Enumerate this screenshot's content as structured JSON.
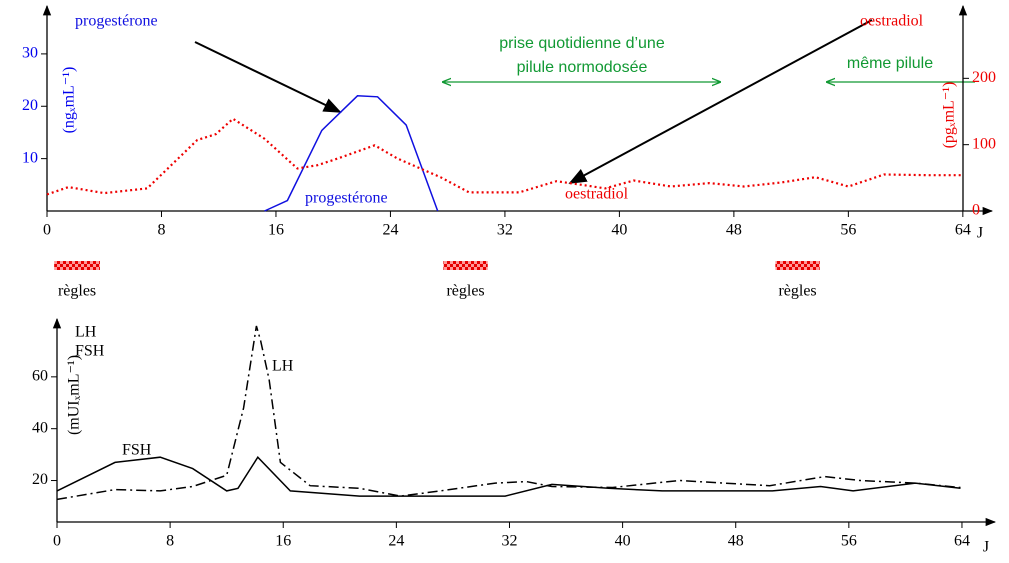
{
  "chart_data": [
    {
      "type": "line",
      "xlim": [
        0,
        66
      ],
      "xticks": [
        0,
        8,
        16,
        24,
        32,
        40,
        48,
        56,
        64
      ],
      "xlabel": "J",
      "ylim": [
        0,
        38
      ],
      "yticks": [
        10,
        20,
        30
      ],
      "ylabel": "(ngₓmL⁻¹)",
      "ycolor": "#0000ee",
      "y2lim": [
        0,
        300
      ],
      "y2ticks": [
        0,
        100,
        200
      ],
      "y2label": "(pgₓmL⁻¹)",
      "y2color": "#ee0000",
      "series": [
        {
          "name": "progestérone",
          "color": "#1010e0",
          "style": "solid",
          "axis": "y",
          "x": [
            15.2,
            16.8,
            19.2,
            21.7,
            23.1,
            25.1,
            27.3
          ],
          "values": [
            0,
            2,
            15.4,
            22,
            21.8,
            16.4,
            0
          ]
        },
        {
          "name": "oestradiol",
          "color": "#ee0000",
          "style": "dotted",
          "axis": "y2",
          "x": [
            0,
            1.5,
            4,
            7,
            10.5,
            11.8,
            13,
            15.2,
            17.5,
            18.9,
            20.3,
            22.9,
            24.5,
            27.5,
            29.5,
            33,
            35.6,
            37.5,
            39,
            41,
            43.6,
            46.3,
            48.7,
            51.3,
            53.7,
            56,
            58.5,
            61.7,
            64
          ],
          "values": [
            25,
            36,
            27,
            34,
            107,
            116,
            139,
            109,
            64,
            69,
            79,
            99,
            79,
            51,
            28,
            28,
            45,
            39,
            34,
            46,
            37,
            42,
            37,
            43,
            51,
            37,
            55,
            54,
            54
          ]
        }
      ],
      "annotations": [
        {
          "text": "progestérone",
          "color": "#1010e0"
        },
        {
          "text": "progestérone",
          "color": "#1010e0"
        },
        {
          "text": "oestradiol",
          "color": "#ee0000"
        },
        {
          "text": "oestradiol",
          "color": "#ee0000"
        },
        {
          "text": "prise quotidienne d’une",
          "color": "#119933"
        },
        {
          "text": "pilule normodosée",
          "color": "#119933"
        },
        {
          "text": "même pilule",
          "color": "#119933"
        }
      ],
      "periods": [
        {
          "label": "règles",
          "start": 0.5,
          "end": 3.7
        },
        {
          "label": "règles",
          "start": 27.7,
          "end": 30.8
        },
        {
          "label": "règles",
          "start": 50.9,
          "end": 54
        }
      ]
    },
    {
      "type": "line",
      "xlim": [
        0,
        66
      ],
      "xticks": [
        0,
        8,
        16,
        24,
        32,
        40,
        48,
        56,
        64
      ],
      "xlabel": "J",
      "ylim": [
        4,
        80
      ],
      "yticks": [
        20,
        40,
        60
      ],
      "ylabel": "(mUIₓmL⁻¹)",
      "ycolor": "#000000",
      "legend_labels": [
        "LH",
        "FSH"
      ],
      "series": [
        {
          "name": "FSH",
          "color": "#000000",
          "style": "solid",
          "axis": "y",
          "x": [
            0,
            4.1,
            7.3,
            9.6,
            12,
            12.8,
            14.2,
            16.5,
            21.4,
            27.4,
            31.7,
            35,
            39,
            42.8,
            50.6,
            54,
            56.3,
            60.7,
            63.9
          ],
          "values": [
            16,
            27,
            29,
            24.6,
            16,
            17,
            29,
            16,
            14,
            14,
            14,
            18.5,
            17,
            16,
            16,
            17.7,
            16,
            19,
            17
          ]
        },
        {
          "name": "LH",
          "color": "#000000",
          "style": "dashdot",
          "axis": "y",
          "x": [
            0,
            4.1,
            7.3,
            9.6,
            12,
            13.2,
            14.1,
            14.4,
            15,
            15.8,
            17.9,
            21.4,
            24.3,
            27.1,
            31,
            33.2,
            35,
            39.3,
            44,
            50.4,
            54.3,
            56.8,
            60.7,
            63.9
          ],
          "values": [
            12.7,
            16.5,
            16,
            17.7,
            22,
            48,
            79.6,
            74,
            59,
            27,
            18,
            17,
            14,
            16,
            19,
            19.6,
            17.7,
            17.3,
            20,
            18,
            21.5,
            20,
            19,
            17.3
          ]
        }
      ]
    }
  ]
}
